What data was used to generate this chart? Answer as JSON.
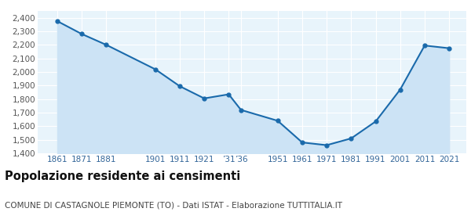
{
  "years": [
    1861,
    1871,
    1881,
    1901,
    1911,
    1921,
    1931,
    1936,
    1951,
    1961,
    1971,
    1981,
    1991,
    2001,
    2011,
    2021
  ],
  "population": [
    2375,
    2280,
    2200,
    2020,
    1895,
    1805,
    1835,
    1720,
    1640,
    1480,
    1460,
    1510,
    1635,
    1870,
    2195,
    2175
  ],
  "xtick_positions": [
    1861,
    1871,
    1881,
    1901,
    1911,
    1921,
    1931,
    1936,
    1951,
    1961,
    1971,
    1981,
    1991,
    2001,
    2011,
    2021
  ],
  "xtick_labels": [
    "1861",
    "1871",
    "1881",
    "1901",
    "1911",
    "1921",
    "’31",
    "’36",
    "1951",
    "1961",
    "1971",
    "1981",
    "1991",
    "2001",
    "2011",
    "2021"
  ],
  "ylim": [
    1400,
    2450
  ],
  "yticks": [
    1400,
    1500,
    1600,
    1700,
    1800,
    1900,
    2000,
    2100,
    2200,
    2300,
    2400
  ],
  "xlim": [
    1853,
    2028
  ],
  "line_color": "#1a6aab",
  "fill_color": "#cce3f5",
  "marker_color": "#1a6aab",
  "bg_color": "#e8f4fb",
  "grid_color": "#ffffff",
  "title": "Popolazione residente ai censimenti",
  "subtitle": "COMUNE DI CASTAGNOLE PIEMONTE (TO) - Dati ISTAT - Elaborazione TUTTITALIA.IT",
  "title_fontsize": 10.5,
  "subtitle_fontsize": 7.5,
  "tick_fontsize": 7.5,
  "ytick_fontsize": 7.5
}
